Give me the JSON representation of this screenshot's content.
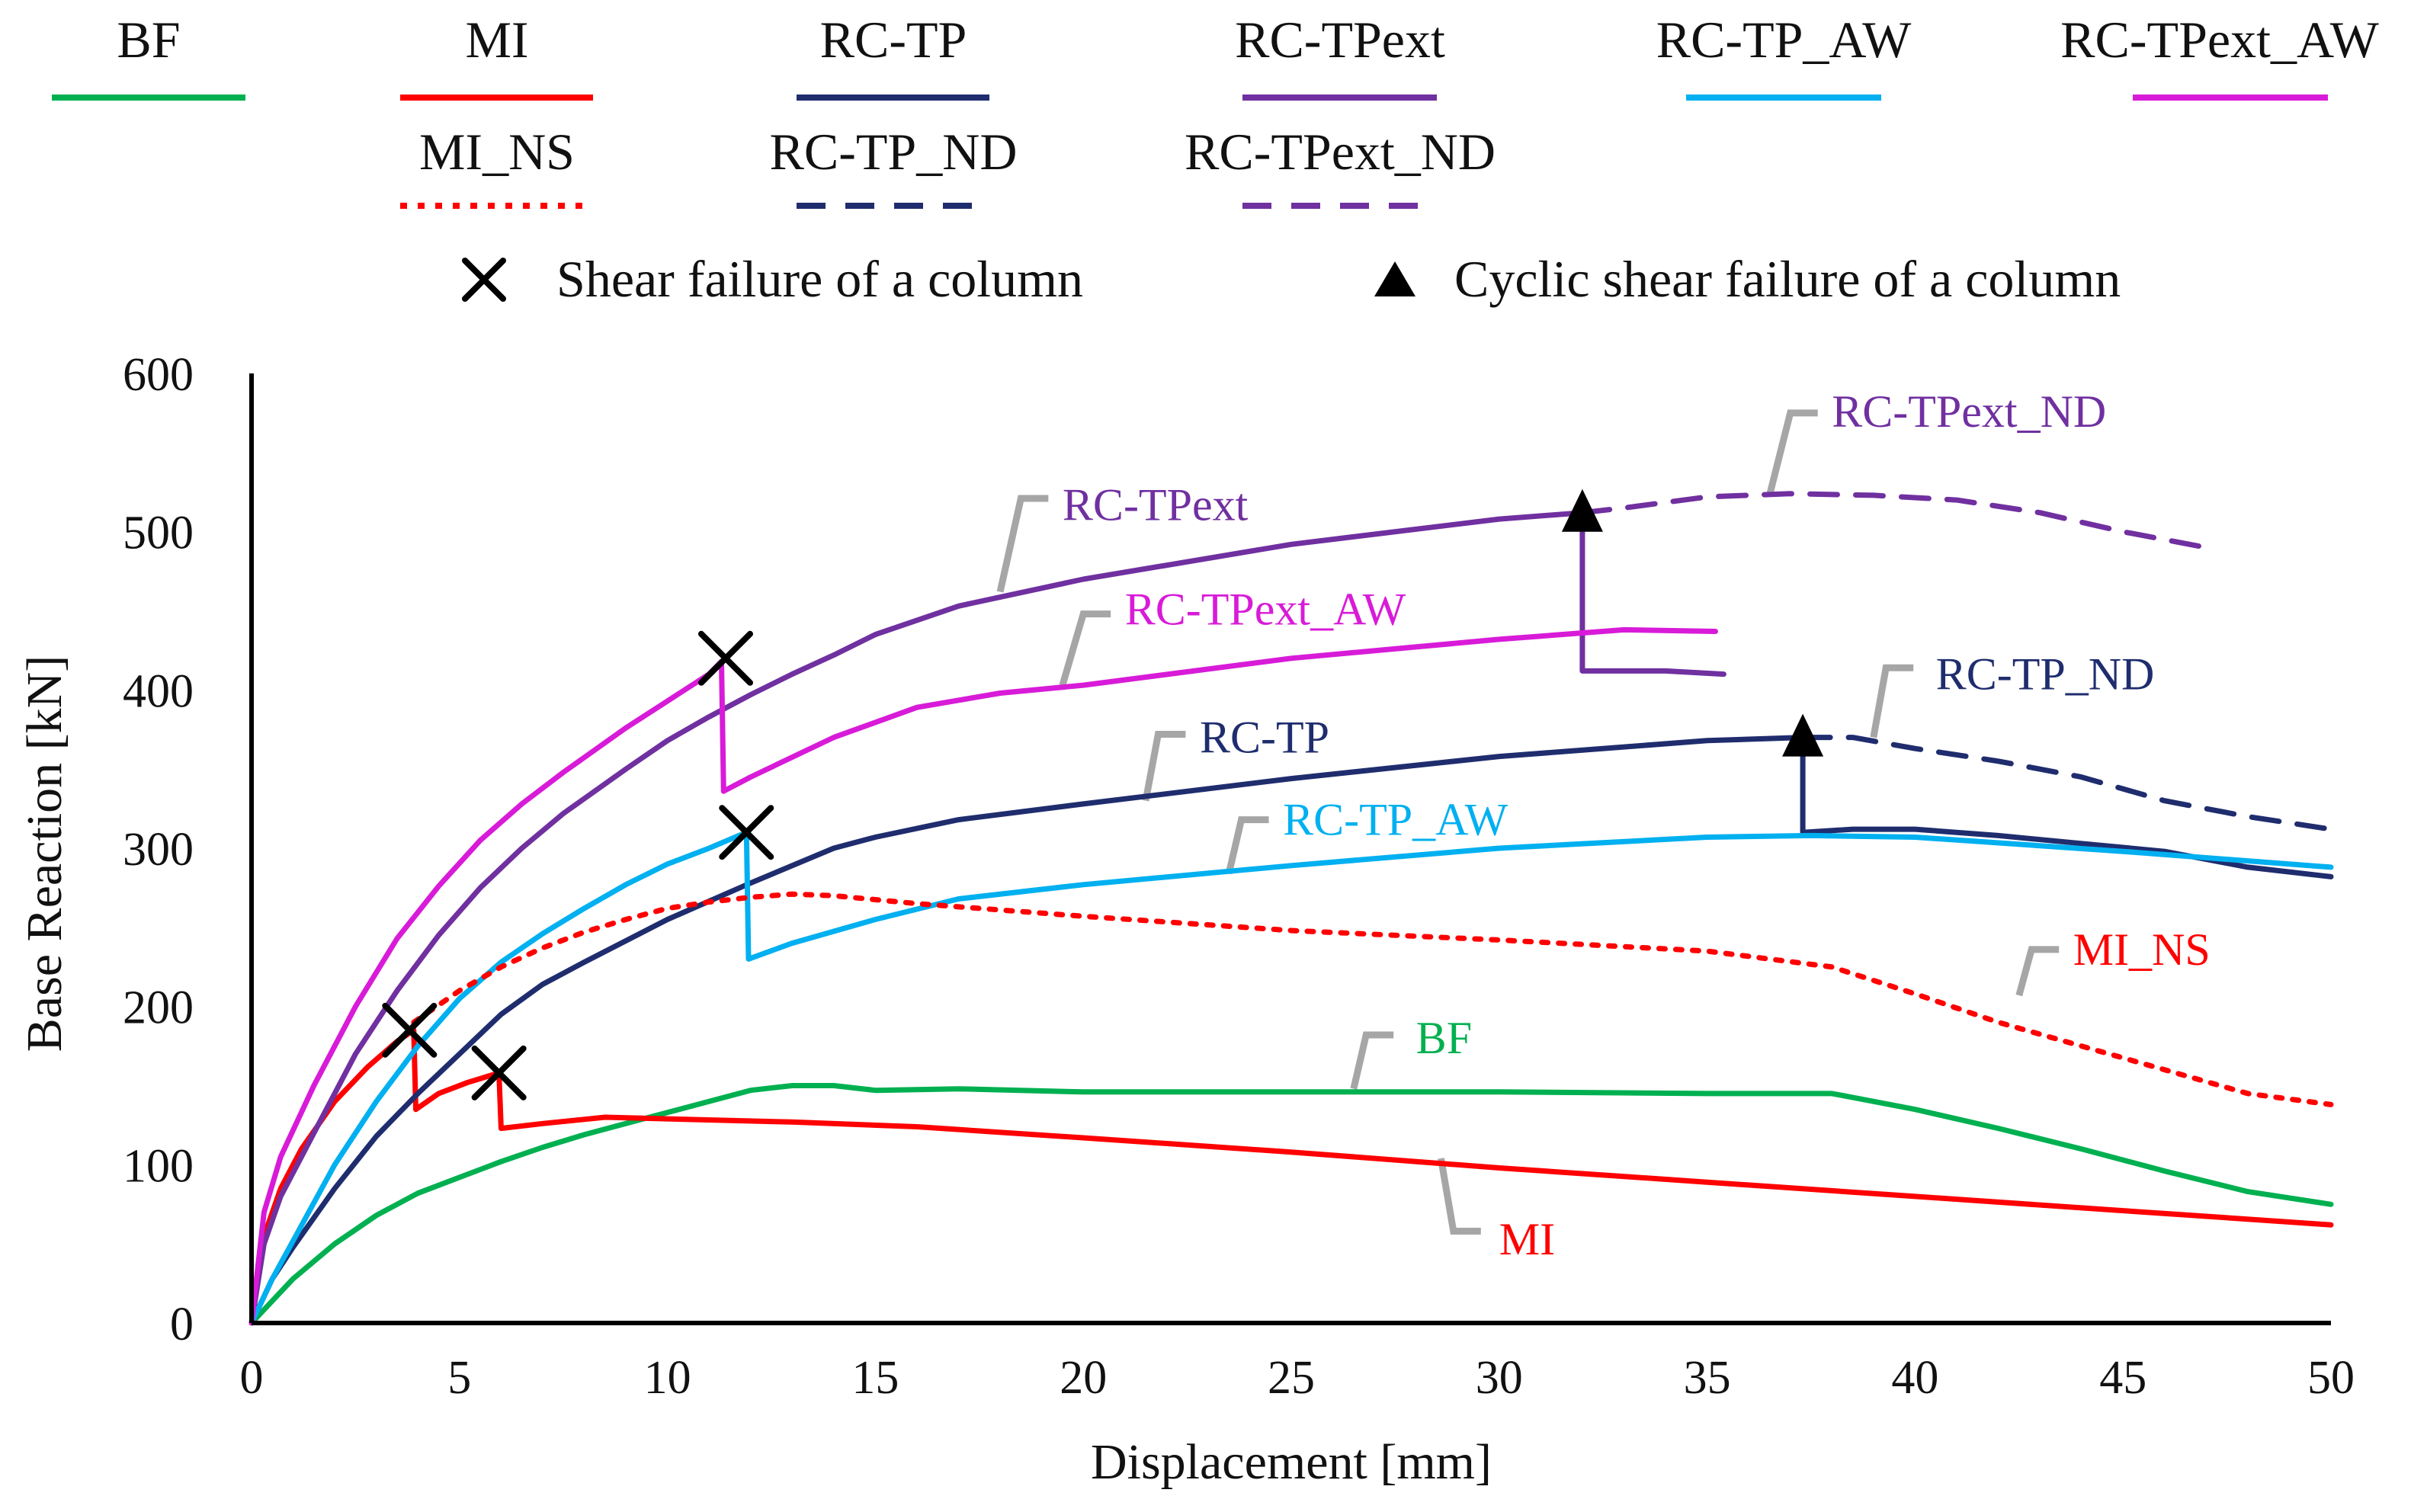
{
  "chart_data": {
    "type": "line",
    "title": "",
    "xlabel": "Displacement [mm]",
    "ylabel": "Base Reaction [kN]",
    "xlim": [
      0,
      50
    ],
    "ylim": [
      0,
      600
    ],
    "xticks": [
      0,
      5,
      10,
      15,
      20,
      25,
      30,
      35,
      40,
      45,
      50
    ],
    "yticks": [
      0,
      100,
      200,
      300,
      400,
      500,
      600
    ],
    "grid": false,
    "legend_position": "top",
    "series": [
      {
        "name": "BF",
        "color": "#00b050",
        "dash": "solid",
        "x": [
          0,
          1,
          2,
          3,
          4,
          5,
          6,
          7,
          8,
          9,
          10,
          11,
          12,
          13,
          14,
          15,
          17,
          20,
          25,
          30,
          35,
          38,
          40,
          42,
          44,
          46,
          48,
          50
        ],
        "y": [
          0,
          28,
          50,
          68,
          82,
          92,
          102,
          111,
          119,
          126,
          133,
          140,
          147,
          150,
          150,
          147,
          148,
          146,
          146,
          146,
          145,
          145,
          135,
          123,
          110,
          96,
          83,
          75
        ]
      },
      {
        "name": "MI",
        "color": "#ff0000",
        "dash": "solid",
        "x": [
          0,
          0.3,
          0.7,
          1.2,
          2,
          2.8,
          3.5,
          3.9,
          3.95,
          4.5,
          5.2,
          5.95,
          6.0,
          7,
          8.5,
          10,
          13,
          16,
          20,
          25,
          30,
          35,
          40,
          45,
          50
        ],
        "y": [
          0,
          55,
          85,
          110,
          140,
          162,
          178,
          185,
          135,
          145,
          152,
          158,
          123,
          126,
          130,
          129,
          127,
          124,
          117,
          108,
          98,
          89,
          80,
          71,
          62
        ]
      },
      {
        "name": "RC-TP",
        "color": "#1f2d6e",
        "dash": "solid",
        "x": [
          0,
          0.5,
          1,
          2,
          3,
          4,
          5,
          6,
          7,
          8,
          10,
          12,
          14,
          15,
          17,
          20,
          25,
          30,
          35,
          37.3,
          37.3,
          38.5,
          40,
          42,
          44,
          46,
          48,
          50
        ],
        "y": [
          0,
          28,
          48,
          85,
          118,
          145,
          170,
          195,
          214,
          228,
          255,
          278,
          300,
          307,
          318,
          328,
          344,
          358,
          368,
          370,
          310,
          312,
          312,
          308,
          303,
          298,
          288,
          282
        ]
      },
      {
        "name": "RC-TPext",
        "color": "#7030a0",
        "dash": "solid",
        "x": [
          0,
          0.3,
          0.7,
          1.5,
          2.5,
          3.5,
          4.5,
          5.5,
          6.5,
          7.5,
          9,
          10,
          11,
          12,
          13,
          14,
          15,
          17,
          20,
          25,
          30,
          32,
          32,
          33,
          34,
          35.4
        ],
        "y": [
          0,
          50,
          80,
          120,
          170,
          210,
          245,
          275,
          300,
          322,
          350,
          368,
          383,
          397,
          410,
          422,
          435,
          453,
          470,
          492,
          508,
          512,
          412,
          412,
          412,
          410
        ]
      },
      {
        "name": "RC-TP_AW",
        "color": "#00b0f0",
        "dash": "solid",
        "x": [
          0,
          0.5,
          1,
          2,
          3,
          4,
          5,
          6,
          7,
          8,
          9,
          10,
          11,
          11.9,
          11.95,
          13,
          15,
          17,
          20,
          25,
          30,
          35,
          37.5,
          40,
          45,
          50
        ],
        "y": [
          0,
          28,
          52,
          100,
          140,
          175,
          205,
          228,
          246,
          262,
          277,
          290,
          300,
          310,
          230,
          240,
          255,
          268,
          277,
          289,
          300,
          307,
          308,
          307,
          298,
          288
        ]
      },
      {
        "name": "RC-TPext_AW",
        "color": "#d81bd8",
        "dash": "solid",
        "x": [
          0,
          0.3,
          0.7,
          1.5,
          2.5,
          3.5,
          4.5,
          5.5,
          6.5,
          7.5,
          9,
          10,
          11,
          11.3,
          11.35,
          12,
          14,
          16,
          18,
          20,
          25,
          30,
          33,
          35.2
        ],
        "y": [
          0,
          70,
          105,
          150,
          200,
          243,
          276,
          305,
          328,
          348,
          376,
          393,
          410,
          418,
          336,
          345,
          370,
          389,
          398,
          403,
          420,
          432,
          438,
          437
        ]
      },
      {
        "name": "MI_NS",
        "color": "#ff0000",
        "dash": "dotted",
        "x": [
          3.9,
          5,
          6,
          7,
          8,
          9,
          10,
          11,
          12,
          13,
          14,
          16,
          20,
          25,
          30,
          35,
          38,
          40,
          42,
          44,
          46,
          48,
          50
        ],
        "y": [
          190,
          210,
          225,
          237,
          247,
          255,
          262,
          266,
          269,
          271,
          270,
          265,
          257,
          248,
          242,
          235,
          225,
          208,
          190,
          175,
          160,
          145,
          138
        ]
      },
      {
        "name": "RC-TP_ND",
        "color": "#1f2d6e",
        "dash": "dashed",
        "x": [
          37.3,
          38.5,
          40,
          42,
          44,
          46,
          48,
          50
        ],
        "y": [
          370,
          370,
          363,
          355,
          345,
          330,
          320,
          312
        ]
      },
      {
        "name": "RC-TPext_ND",
        "color": "#7030a0",
        "dash": "dashed",
        "x": [
          32,
          33,
          35,
          37,
          39,
          41,
          43,
          45,
          47
        ],
        "y": [
          512,
          515,
          522,
          524,
          523,
          520,
          512,
          500,
          490
        ]
      }
    ],
    "failure_markers": [
      {
        "type": "shear",
        "symbol": "cross",
        "x": 3.8,
        "y": 185
      },
      {
        "type": "shear",
        "symbol": "cross",
        "x": 5.95,
        "y": 158
      },
      {
        "type": "shear",
        "symbol": "cross",
        "x": 11.4,
        "y": 420
      },
      {
        "type": "shear",
        "symbol": "cross",
        "x": 11.9,
        "y": 310
      },
      {
        "type": "cyclic",
        "symbol": "triangle",
        "x": 32,
        "y": 512
      },
      {
        "type": "cyclic",
        "symbol": "triangle",
        "x": 37.3,
        "y": 370
      }
    ],
    "annotations": [
      {
        "text": "RC-TPext_ND",
        "color": "#7030a0",
        "target": [
          36.5,
          523
        ],
        "corner": [
          37,
          575
        ],
        "label_at": [
          38,
          576
        ]
      },
      {
        "text": "RC-TPext",
        "color": "#7030a0",
        "target": [
          18,
          462
        ],
        "corner": [
          18.5,
          521
        ],
        "label_at": [
          19.5,
          517
        ]
      },
      {
        "text": "RC-TPext_AW",
        "color": "#d81bd8",
        "target": [
          19.5,
          403
        ],
        "corner": [
          20,
          448
        ],
        "label_at": [
          21,
          451
        ]
      },
      {
        "text": "RC-TP_ND",
        "color": "#1f2d6e",
        "target": [
          39,
          370
        ],
        "corner": [
          39.3,
          414
        ],
        "label_at": [
          40.5,
          410
        ]
      },
      {
        "text": "RC-TP",
        "color": "#1f2d6e",
        "target": [
          21.5,
          330
        ],
        "corner": [
          21.8,
          372
        ],
        "label_at": [
          22.8,
          370
        ]
      },
      {
        "text": "RC-TP_AW",
        "color": "#00b0f0",
        "target": [
          23.5,
          284
        ],
        "corner": [
          23.8,
          318
        ],
        "label_at": [
          24.8,
          318
        ]
      },
      {
        "text": "MI_NS",
        "color": "#ff0000",
        "target": [
          42.5,
          207
        ],
        "corner": [
          42.8,
          236
        ],
        "label_at": [
          43.8,
          236
        ]
      },
      {
        "text": "BF",
        "color": "#00b050",
        "target": [
          26.5,
          148
        ],
        "corner": [
          26.8,
          182
        ],
        "label_at": [
          28,
          180
        ]
      },
      {
        "text": "MI",
        "color": "#ff0000",
        "target": [
          28.6,
          104
        ],
        "corner": [
          28.9,
          58
        ],
        "label_at": [
          30,
          53
        ]
      }
    ]
  },
  "legend": {
    "items": [
      {
        "label": "BF",
        "color": "#00b050",
        "dash": "solid"
      },
      {
        "label": "MI",
        "color": "#ff0000",
        "dash": "solid"
      },
      {
        "label": "RC-TP",
        "color": "#1f2d6e",
        "dash": "solid"
      },
      {
        "label": "RC-TPext",
        "color": "#7030a0",
        "dash": "solid"
      },
      {
        "label": "RC-TP_AW",
        "color": "#00b0f0",
        "dash": "solid"
      },
      {
        "label": "RC-TPext_AW",
        "color": "#d81bd8",
        "dash": "solid"
      },
      {
        "label": "MI_NS",
        "color": "#ff0000",
        "dash": "dotted"
      },
      {
        "label": "RC-TP_ND",
        "color": "#1f2d6e",
        "dash": "dashed"
      },
      {
        "label": "RC-TPext_ND",
        "color": "#7030a0",
        "dash": "dashed"
      }
    ],
    "markers": [
      {
        "symbol": "cross",
        "label": "Shear failure of a column"
      },
      {
        "symbol": "triangle",
        "label": "Cyclic shear failure of a column"
      }
    ]
  }
}
